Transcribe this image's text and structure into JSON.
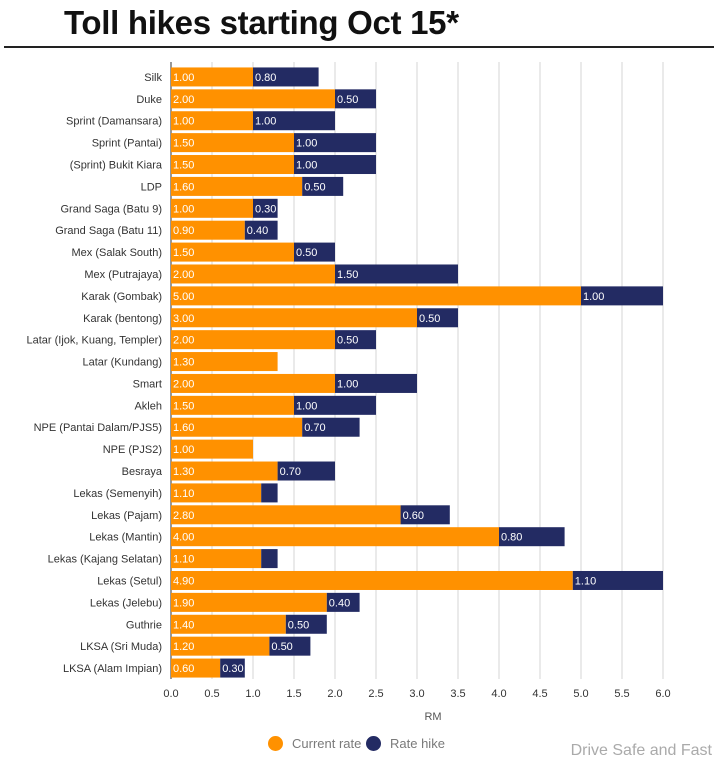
{
  "title": "Toll hikes starting Oct 15*",
  "watermark": "Drive Safe and Fast",
  "colors": {
    "current": "#FF9100",
    "hike": "#232B63",
    "grid": "#d6d6d6",
    "label": "#333333"
  },
  "legend": {
    "current_label": "Current rate",
    "hike_label": "Rate hike",
    "placement": "bottom"
  },
  "chart_data": {
    "type": "bar",
    "orientation": "horizontal",
    "stacked": true,
    "xlabel": "RM",
    "xlim": [
      0,
      6
    ],
    "xticks": [
      "0.0",
      "0.5",
      "1.0",
      "1.5",
      "2.0",
      "2.5",
      "3.0",
      "3.5",
      "4.0",
      "4.5",
      "5.0",
      "5.5",
      "6.0"
    ],
    "grid": true,
    "categories": [
      "Silk",
      "Duke",
      "Sprint (Damansara)",
      "Sprint (Pantai)",
      "(Sprint) Bukit Kiara",
      "LDP",
      "Grand Saga (Batu 9)",
      "Grand Saga (Batu 11)",
      "Mex (Salak South)",
      "Mex (Putrajaya)",
      "Karak (Gombak)",
      "Karak (bentong)",
      "Latar (Ijok, Kuang, Templer)",
      "Latar (Kundang)",
      "Smart",
      "Akleh",
      "NPE (Pantai Dalam/PJS5)",
      "NPE (PJS2)",
      "Besraya",
      "Lekas (Semenyih)",
      "Lekas (Pajam)",
      "Lekas (Mantin)",
      "Lekas (Kajang Selatan)",
      "Lekas (Setul)",
      "Lekas (Jelebu)",
      "Guthrie",
      "LKSA (Sri Muda)",
      "LKSA (Alam Impian)"
    ],
    "series": [
      {
        "name": "Current rate",
        "values": [
          1.0,
          2.0,
          1.0,
          1.5,
          1.5,
          1.6,
          1.0,
          0.9,
          1.5,
          2.0,
          5.0,
          3.0,
          2.0,
          1.3,
          2.0,
          1.5,
          1.6,
          1.0,
          1.3,
          1.1,
          2.8,
          4.0,
          1.1,
          4.9,
          1.9,
          1.4,
          1.2,
          0.6
        ],
        "labels": [
          "1.00",
          "2.00",
          "1.00",
          "1.50",
          "1.50",
          "1.60",
          "1.00",
          "0.90",
          "1.50",
          "2.00",
          "5.00",
          "3.00",
          "2.00",
          "1.30",
          "2.00",
          "1.50",
          "1.60",
          "1.00",
          "1.30",
          "1.10",
          "2.80",
          "4.00",
          "1.10",
          "4.90",
          "1.90",
          "1.40",
          "1.20",
          "0.60"
        ]
      },
      {
        "name": "Rate hike",
        "values": [
          0.8,
          0.5,
          1.0,
          1.0,
          1.0,
          0.5,
          0.3,
          0.4,
          0.5,
          1.5,
          1.0,
          0.5,
          0.5,
          0.0,
          1.0,
          1.0,
          0.7,
          0.0,
          0.7,
          0.2,
          0.6,
          0.8,
          0.2,
          1.1,
          0.4,
          0.5,
          0.5,
          0.3
        ],
        "labels": [
          "0.80",
          "0.50",
          "1.00",
          "1.00",
          "1.00",
          "0.50",
          "0.30",
          "0.40",
          "0.50",
          "1.50",
          "1.00",
          "0.50",
          "0.50",
          "",
          "1.00",
          "1.00",
          "0.70",
          "",
          "0.70",
          "",
          "0.60",
          "0.80",
          "",
          "1.10",
          "0.40",
          "0.50",
          "0.50",
          "0.30"
        ]
      }
    ]
  }
}
